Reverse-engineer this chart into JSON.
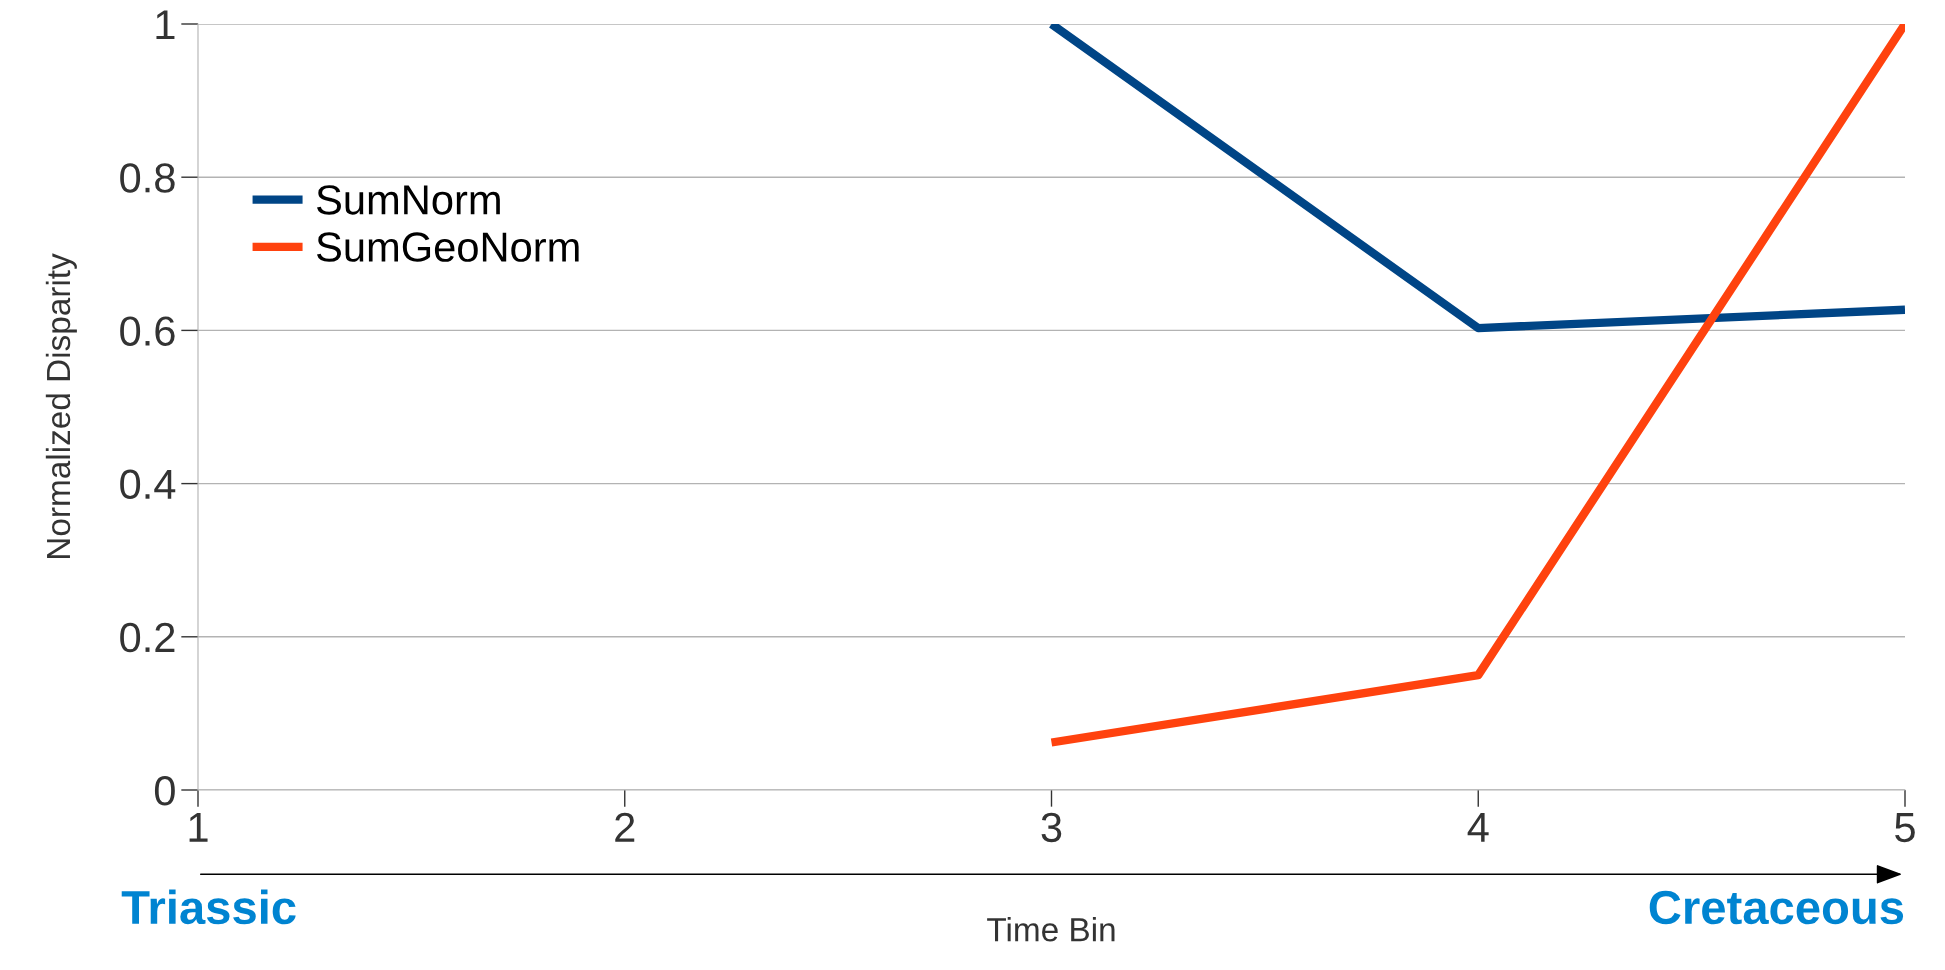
{
  "chart_data": {
    "type": "line",
    "xlabel": "Time Bin",
    "ylabel": "Normalized Disparity",
    "x": [
      3,
      4,
      5
    ],
    "series": [
      {
        "name": "SumNorm",
        "color": "#004586",
        "values": [
          1.0,
          0.603,
          0.627
        ]
      },
      {
        "name": "SumGeoNorm",
        "color": "#ff420e",
        "values": [
          0.062,
          0.15,
          1.0
        ]
      }
    ],
    "xlim": [
      1,
      5
    ],
    "xticks": [
      1,
      2,
      3,
      4,
      5
    ],
    "ylim": [
      0,
      1
    ],
    "yticks": [
      0,
      0.2,
      0.4,
      0.6,
      0.8,
      1
    ],
    "grid": "y",
    "legend": "top left",
    "marker": "none",
    "line_style": "solid",
    "annotations": [
      "Triassic",
      "Cretaceous"
    ]
  }
}
